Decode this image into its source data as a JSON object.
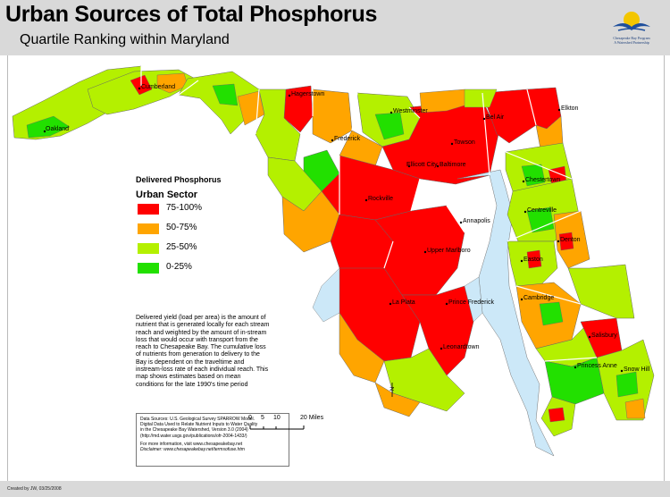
{
  "header": {
    "title": "Urban Sources of Total Phosphorus",
    "subtitle": "Quartile Ranking within Maryland",
    "logo_name": "Chesapeake Bay Program",
    "logo_tagline": "A Watershed Partnership"
  },
  "legend": {
    "title": "Delivered Phosphorus",
    "subtitle": "Urban Sector",
    "items": [
      {
        "label": "75-100%",
        "color": "#ff0000"
      },
      {
        "label": "50-75%",
        "color": "#ffa500"
      },
      {
        "label": "25-50%",
        "color": "#b4f000"
      },
      {
        "label": "0-25%",
        "color": "#22e000"
      }
    ]
  },
  "description": "Delivered yield (load per area) is the amount of nutrient that is generated locally for each stream reach and weighted by the amount of in-stream loss that would occur with transport from the reach to Chesapeake Bay. The cumulative loss of nutrients from generation to delivery to the Bay is dependent on the traveltime and instream-loss rate of each individual reach. This map shows estimates based on mean conditions for the late 1990's time period",
  "sources": {
    "line1": "Data Sources:  U.S. Geological Survey SPARROW Model.",
    "line2": "Digital Data Used to Relate Nutrient Inputs to Water Quality",
    "line3": "in the Chesapeake Bay Watershed, Version 3.0 (2004)",
    "line4": "(http://md.water.usgs.gov/publications/ofr-2004-1433/)",
    "line5": "For more information, visit www.chesapeakebay.net",
    "line6": "Disclaimer: www.chesapeakebay.net/termsofuse.htm"
  },
  "scale": {
    "t0": "0",
    "t1": "5",
    "t2": "10",
    "t3": "20 Miles"
  },
  "north": "N",
  "credit": "Created by JW, 03/25/2008",
  "cities": [
    "Cumberland",
    "Hagerstown",
    "Oakland",
    "Westminster",
    "Bel Air",
    "Elkton",
    "Frederick",
    "Towson",
    "Baltimore",
    "Ellicott City",
    "Chestertown",
    "Rockville",
    "Annapolis",
    "Centreville",
    "Upper Marlboro",
    "Denton",
    "Easton",
    "Prince Frederick",
    "La Plata",
    "Cambridge",
    "Leonardtown",
    "Salisbury",
    "Princess Anne",
    "Snow Hill"
  ]
}
